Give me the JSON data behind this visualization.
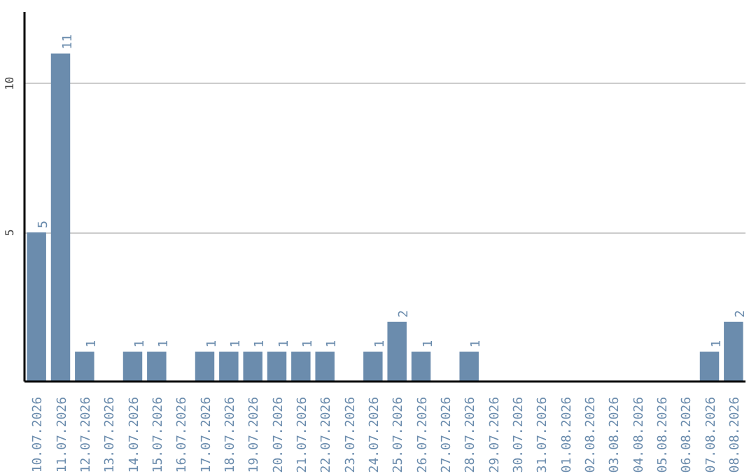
{
  "chart_data": {
    "type": "bar",
    "categories": [
      "10.07.2026",
      "11.07.2026",
      "12.07.2026",
      "13.07.2026",
      "14.07.2026",
      "15.07.2026",
      "16.07.2026",
      "17.07.2026",
      "18.07.2026",
      "19.07.2026",
      "20.07.2026",
      "21.07.2026",
      "22.07.2026",
      "23.07.2026",
      "24.07.2026",
      "25.07.2026",
      "26.07.2026",
      "27.07.2026",
      "28.07.2026",
      "29.07.2026",
      "30.07.2026",
      "31.07.2026",
      "01.08.2026",
      "02.08.2026",
      "03.08.2026",
      "04.08.2026",
      "05.08.2026",
      "06.08.2026",
      "07.08.2026",
      "08.08.2026"
    ],
    "values": [
      5,
      11,
      1,
      0,
      1,
      1,
      0,
      1,
      1,
      1,
      1,
      1,
      1,
      0,
      1,
      2,
      1,
      0,
      1,
      0,
      0,
      0,
      0,
      0,
      0,
      0,
      0,
      0,
      1,
      2
    ],
    "value_labels": [
      "5",
      "11",
      "1",
      null,
      "1",
      "1",
      null,
      "1",
      "1",
      "1",
      "1",
      "1",
      "1",
      null,
      "1",
      "2",
      "1",
      null,
      "1",
      null,
      null,
      null,
      null,
      null,
      null,
      null,
      null,
      null,
      "1",
      "2"
    ],
    "color": "#6b8cad",
    "ylim": [
      0,
      12.4
    ],
    "yticks": [
      5,
      10
    ],
    "grid": "y"
  }
}
